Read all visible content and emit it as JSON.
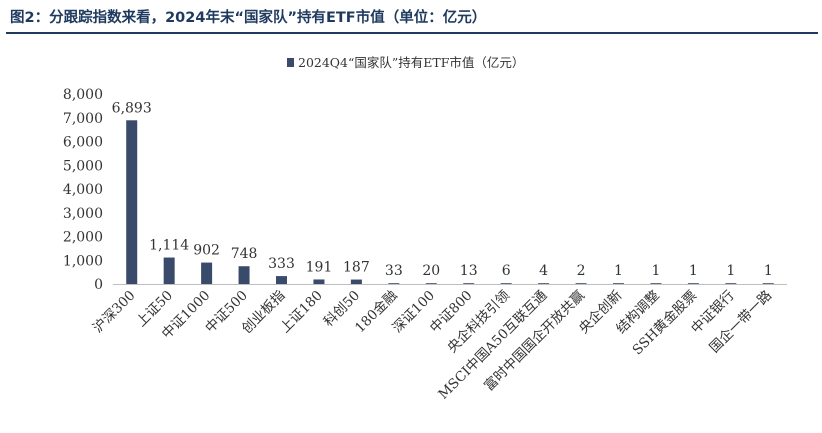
{
  "figure_title": "图2：分跟踪指数来看，2024年末“国家队”持有ETF市值（单位：亿元）",
  "colors": {
    "bar": "#3a4a6a",
    "axis": "#bfbfbf",
    "title": "#1f3a5f"
  },
  "chart_data": {
    "type": "bar",
    "title": "",
    "xlabel": "",
    "ylabel": "",
    "legend_position": "top-center",
    "grid": false,
    "ylim": [
      0,
      8000
    ],
    "yticks": [
      "0",
      "1,000",
      "2,000",
      "3,000",
      "4,000",
      "5,000",
      "6,000",
      "7,000",
      "8,000"
    ],
    "categories": [
      "沪深300",
      "上证50",
      "中证1000",
      "中证500",
      "创业板指",
      "上证180",
      "科创50",
      "180金融",
      "深证100",
      "中证800",
      "央企科技引领",
      "MSCI中国A50互联互通",
      "富时中国国企开放共赢",
      "央企创新",
      "结构调整",
      "SSH黄金股票",
      "中证银行",
      "国企一带一路"
    ],
    "series": [
      {
        "name": "2024Q4“国家队”持有ETF市值（亿元）",
        "values": [
          6893,
          1114,
          902,
          748,
          333,
          191,
          187,
          33,
          20,
          13,
          6,
          4,
          2,
          1,
          1,
          1,
          1,
          1
        ],
        "labels": [
          "6,893",
          "1,114",
          "902",
          "748",
          "333",
          "191",
          "187",
          "33",
          "20",
          "13",
          "6",
          "4",
          "2",
          "1",
          "1",
          "1",
          "1",
          "1"
        ]
      }
    ]
  }
}
